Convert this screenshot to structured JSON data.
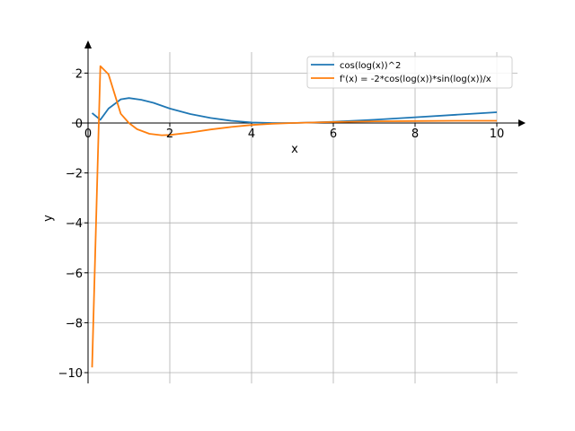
{
  "chart_data": {
    "type": "line",
    "xlabel": "x",
    "ylabel": "y",
    "xlim": [
      0,
      10.5
    ],
    "ylim": [
      -10.4,
      2.8
    ],
    "xticks": [
      0,
      2,
      4,
      6,
      8,
      10
    ],
    "yticks": [
      2,
      0,
      -2,
      -4,
      -6,
      -8,
      -10
    ],
    "xtick_labels": [
      "0",
      "2",
      "4",
      "6",
      "8",
      "10"
    ],
    "ytick_labels": [
      "2",
      "0",
      "−2",
      "−4",
      "−6",
      "−8",
      "−10"
    ],
    "grid": true,
    "legend_position": "top-right",
    "series": [
      {
        "name": "cos(log(x))^2",
        "color": "#1f77b4",
        "x": [
          0.1,
          0.3,
          0.5,
          0.8,
          1.0,
          1.3,
          1.6,
          2.0,
          2.5,
          3.0,
          3.5,
          4.0,
          4.5,
          4.81,
          5.0,
          5.5,
          6.0,
          7.0,
          8.0,
          9.0,
          10.0
        ],
        "y": [
          0.4,
          0.13,
          0.58,
          0.95,
          1.0,
          0.93,
          0.81,
          0.58,
          0.36,
          0.2,
          0.09,
          0.02,
          0.0,
          0.0,
          0.0,
          0.02,
          0.05,
          0.13,
          0.23,
          0.33,
          0.43
        ]
      },
      {
        "name": "f'(x) = -2*cos(log(x))*sin(log(x))/x",
        "color": "#ff7f0e",
        "x": [
          0.1,
          0.3,
          0.5,
          0.8,
          1.0,
          1.2,
          1.5,
          1.8,
          2.0,
          2.5,
          3.0,
          3.5,
          4.0,
          4.5,
          5.0,
          6.0,
          7.0,
          8.0,
          9.0,
          10.0
        ],
        "y": [
          -9.79,
          2.28,
          1.95,
          0.37,
          0.0,
          -0.25,
          -0.43,
          -0.49,
          -0.48,
          -0.38,
          -0.26,
          -0.16,
          -0.08,
          -0.03,
          0.0,
          0.04,
          0.07,
          0.08,
          0.09,
          0.09
        ]
      }
    ]
  }
}
